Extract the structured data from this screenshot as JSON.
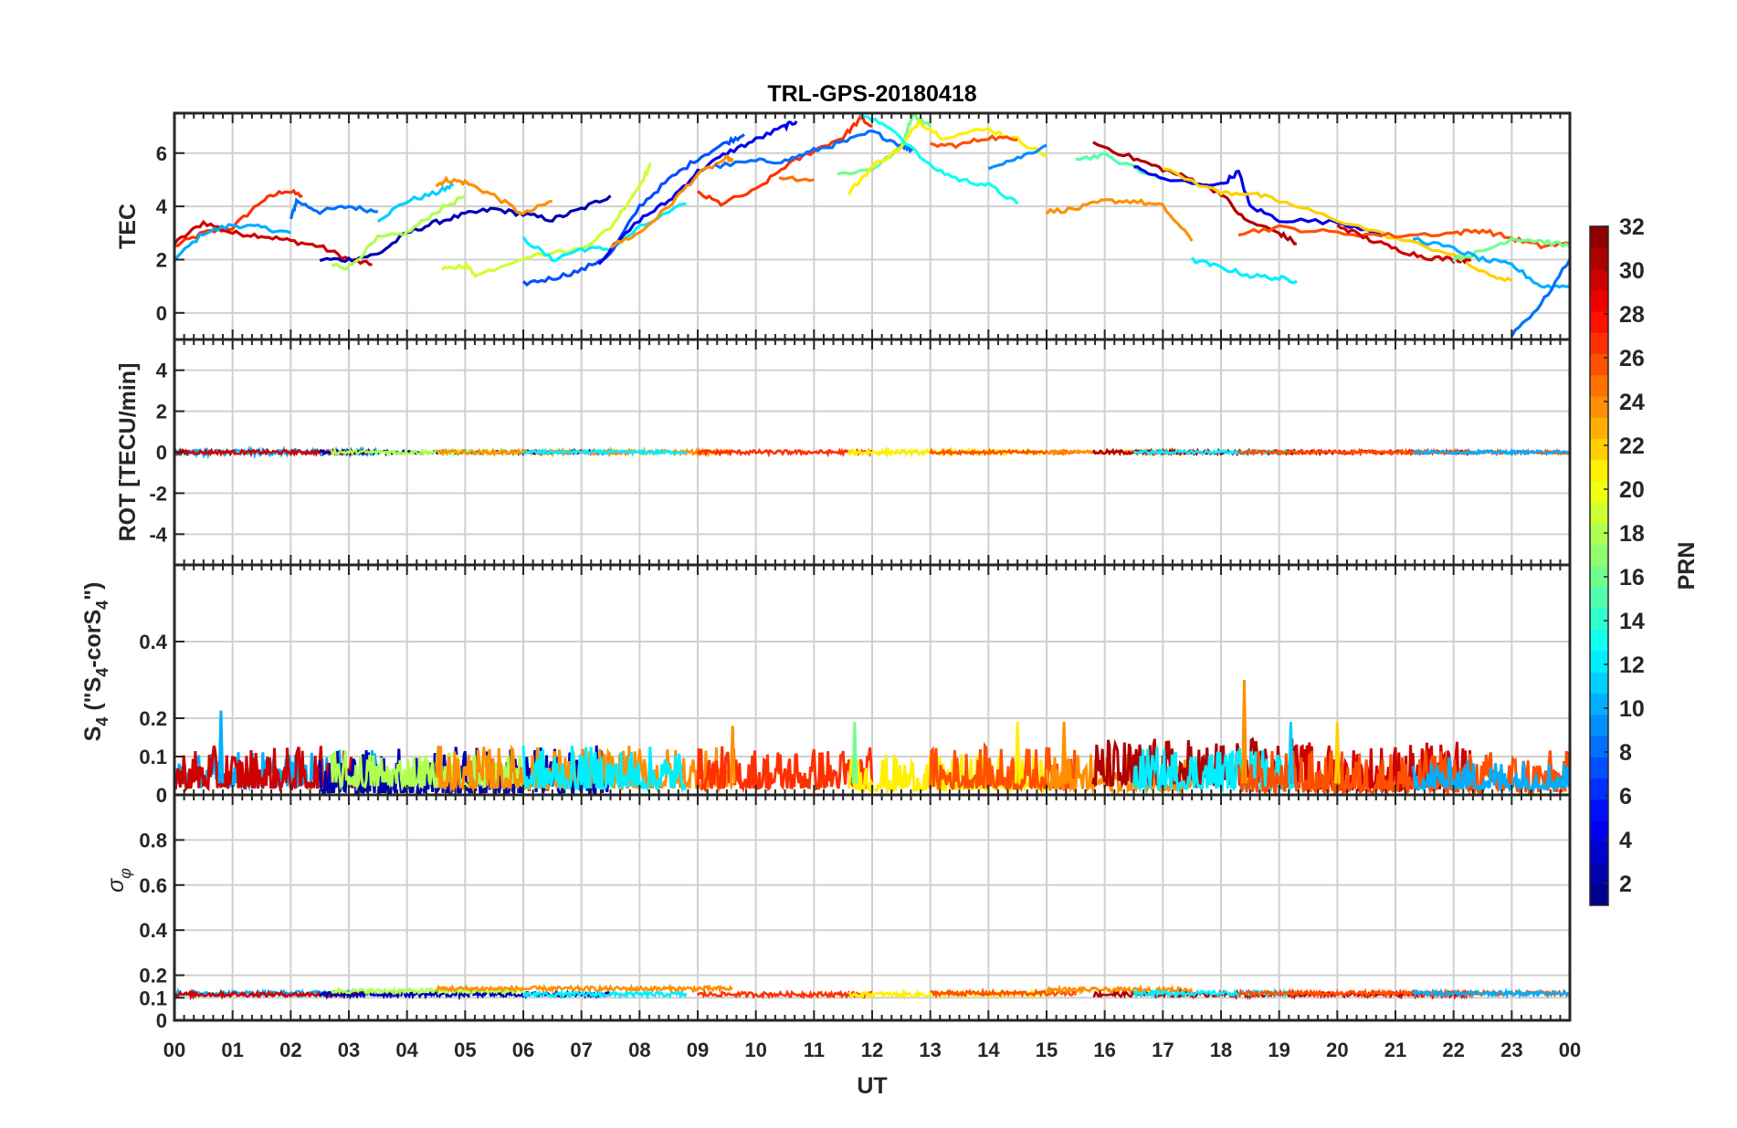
{
  "chart_data": {
    "type": "line",
    "title": "TRL-GPS-20180418",
    "xlabel": "UT",
    "xlim": [
      0,
      24
    ],
    "x_tick_labels": [
      "00",
      "01",
      "02",
      "03",
      "04",
      "05",
      "06",
      "07",
      "08",
      "09",
      "10",
      "11",
      "12",
      "13",
      "14",
      "15",
      "16",
      "17",
      "18",
      "19",
      "20",
      "21",
      "22",
      "23",
      "00"
    ],
    "grid": true,
    "colorbar": {
      "label": "PRN",
      "range": [
        1,
        32
      ],
      "levels": 32,
      "colormap": "jet",
      "tick_labels": [
        "2",
        "4",
        "6",
        "8",
        "10",
        "12",
        "14",
        "16",
        "18",
        "20",
        "22",
        "24",
        "26",
        "28",
        "30",
        "32"
      ],
      "placement": "right"
    },
    "panels": [
      {
        "id": "tec",
        "ylabel": "TEC",
        "ylim": [
          -1.0,
          7.5
        ],
        "yticks": [
          0,
          2,
          4,
          6
        ],
        "ytick_labels": [
          "0",
          "2",
          "4",
          "6"
        ]
      },
      {
        "id": "rot",
        "ylabel": "ROT [TECU/min]",
        "ylim": [
          -5.5,
          5.5
        ],
        "yticks": [
          -4,
          -2,
          0,
          2,
          4
        ],
        "ytick_labels": [
          "-4",
          "-2",
          "0",
          "2",
          "4"
        ]
      },
      {
        "id": "s4",
        "ylabel_parts": [
          "S",
          "4",
          " (\"S",
          "4",
          "-corS",
          "4",
          "\")"
        ],
        "ylim": [
          0,
          0.6
        ],
        "yticks": [
          0,
          0.1,
          0.2,
          0.4
        ],
        "ytick_labels": [
          "0",
          "0.1",
          "0.2",
          "0.4"
        ]
      },
      {
        "id": "sigma",
        "ylabel_parts": [
          "σ",
          "φ"
        ],
        "ylim": [
          0,
          1.0
        ],
        "yticks": [
          0,
          0.1,
          0.2,
          0.4,
          0.6,
          0.8
        ],
        "ytick_labels": [
          "0",
          "0.1",
          "0.2",
          "0.4",
          "0.6",
          "0.8"
        ]
      }
    ],
    "tec_series": [
      {
        "prn": 27,
        "points": [
          [
            0,
            2.5
          ],
          [
            0.5,
            3.0
          ],
          [
            1.0,
            3.2
          ],
          [
            1.5,
            4.2
          ],
          [
            1.9,
            4.6
          ],
          [
            2.2,
            4.4
          ]
        ]
      },
      {
        "prn": 30,
        "points": [
          [
            0,
            2.6
          ],
          [
            0.5,
            3.4
          ],
          [
            1,
            3.0
          ],
          [
            1.5,
            2.9
          ],
          [
            2,
            2.7
          ],
          [
            2.5,
            2.5
          ],
          [
            3,
            2.0
          ],
          [
            3.4,
            1.8
          ]
        ]
      },
      {
        "prn": 10,
        "points": [
          [
            0,
            2.0
          ],
          [
            0.5,
            3.0
          ],
          [
            1.0,
            3.3
          ],
          [
            1.5,
            3.2
          ],
          [
            2,
            3.0
          ]
        ]
      },
      {
        "prn": 8,
        "points": [
          [
            2.0,
            3.5
          ],
          [
            2.1,
            4.2
          ],
          [
            2.5,
            3.8
          ],
          [
            3.0,
            4.0
          ],
          [
            3.5,
            3.8
          ]
        ]
      },
      {
        "prn": 11,
        "points": [
          [
            3.5,
            3.5
          ],
          [
            4.0,
            4.2
          ],
          [
            4.5,
            4.5
          ],
          [
            4.8,
            4.8
          ]
        ]
      },
      {
        "prn": 2,
        "points": [
          [
            2.5,
            2.0
          ],
          [
            3,
            2.0
          ],
          [
            3.5,
            2.2
          ],
          [
            4,
            3.0
          ],
          [
            4.5,
            3.4
          ],
          [
            5,
            3.7
          ],
          [
            5.5,
            3.9
          ],
          [
            6,
            3.7
          ],
          [
            6.5,
            3.5
          ],
          [
            7,
            3.9
          ],
          [
            7.5,
            4.4
          ]
        ]
      },
      {
        "prn": 24,
        "points": [
          [
            4.5,
            4.8
          ],
          [
            4.7,
            5.0
          ],
          [
            5,
            4.9
          ],
          [
            5.5,
            4.4
          ],
          [
            6,
            3.7
          ],
          [
            6.5,
            4.2
          ]
        ]
      },
      {
        "prn": 18,
        "points": [
          [
            2.7,
            1.8
          ],
          [
            3,
            1.7
          ],
          [
            3.5,
            2.8
          ],
          [
            4,
            3.0
          ],
          [
            4.5,
            3.8
          ],
          [
            5,
            4.4
          ]
        ]
      },
      {
        "prn": 19,
        "points": [
          [
            4.6,
            1.6
          ],
          [
            5,
            1.8
          ],
          [
            5.2,
            1.4
          ],
          [
            6,
            2.1
          ],
          [
            7,
            2.4
          ],
          [
            7.5,
            3.2
          ],
          [
            8,
            4.8
          ],
          [
            8.2,
            5.6
          ]
        ]
      },
      {
        "prn": 12,
        "points": [
          [
            6,
            2.8
          ],
          [
            6.5,
            2.0
          ],
          [
            7,
            2.4
          ],
          [
            7.5,
            2.4
          ],
          [
            8,
            3.2
          ],
          [
            8.8,
            4.1
          ]
        ]
      },
      {
        "prn": 7,
        "points": [
          [
            6.0,
            1.1
          ],
          [
            6.5,
            1.3
          ],
          [
            7,
            1.6
          ],
          [
            7.5,
            2.2
          ],
          [
            8,
            4.0
          ],
          [
            8.5,
            5.0
          ],
          [
            9,
            5.8
          ],
          [
            9.5,
            6.4
          ],
          [
            9.8,
            6.7
          ]
        ]
      },
      {
        "prn": 4,
        "points": [
          [
            7.3,
            1.9
          ],
          [
            8,
            3.5
          ],
          [
            8.5,
            4.2
          ],
          [
            9,
            5.3
          ],
          [
            9.5,
            6.0
          ],
          [
            10,
            6.5
          ],
          [
            10.5,
            7.0
          ],
          [
            10.7,
            7.2
          ]
        ]
      },
      {
        "prn": 24,
        "points": [
          [
            7.5,
            2.5
          ],
          [
            8,
            3.0
          ],
          [
            8.5,
            4.0
          ],
          [
            9,
            5.2
          ],
          [
            9.5,
            5.8
          ],
          [
            9.6,
            5.7
          ]
        ]
      },
      {
        "prn": 27,
        "points": [
          [
            9.0,
            4.5
          ],
          [
            9.4,
            4.1
          ],
          [
            10,
            4.6
          ],
          [
            10.5,
            5.5
          ],
          [
            11,
            6.1
          ],
          [
            11.5,
            6.6
          ],
          [
            11.8,
            7.3
          ],
          [
            12,
            7.0
          ]
        ]
      },
      {
        "prn": 8,
        "points": [
          [
            9.3,
            5.5
          ],
          [
            10,
            5.7
          ],
          [
            10.5,
            5.7
          ],
          [
            11,
            6.1
          ],
          [
            11.5,
            6.4
          ],
          [
            12,
            6.8
          ],
          [
            12.5,
            6.3
          ],
          [
            12.7,
            6.1
          ]
        ]
      },
      {
        "prn": 25,
        "points": [
          [
            10.4,
            5.1
          ],
          [
            11,
            5.0
          ]
        ]
      },
      {
        "prn": 16,
        "points": [
          [
            11.4,
            5.2
          ],
          [
            12,
            5.4
          ],
          [
            12.5,
            6.2
          ],
          [
            12.7,
            7.5
          ],
          [
            13,
            7.0
          ]
        ]
      },
      {
        "prn": 21,
        "points": [
          [
            11.6,
            4.5
          ],
          [
            12,
            5.5
          ],
          [
            12.5,
            6.2
          ],
          [
            12.8,
            7.2
          ],
          [
            13.2,
            6.6
          ],
          [
            14,
            6.9
          ],
          [
            14.5,
            6.5
          ],
          [
            15,
            5.9
          ]
        ]
      },
      {
        "prn": 13,
        "points": [
          [
            11.8,
            7.4
          ],
          [
            12.3,
            7.0
          ],
          [
            13,
            5.5
          ],
          [
            13.5,
            5.0
          ],
          [
            14,
            4.8
          ],
          [
            14.5,
            4.1
          ]
        ]
      },
      {
        "prn": 26,
        "points": [
          [
            13,
            6.3
          ],
          [
            13.5,
            6.3
          ],
          [
            14,
            6.6
          ],
          [
            14.5,
            6.5
          ]
        ]
      },
      {
        "prn": 9,
        "points": [
          [
            14,
            5.5
          ],
          [
            14.5,
            5.8
          ],
          [
            15,
            6.3
          ]
        ]
      },
      {
        "prn": 24,
        "points": [
          [
            15,
            3.8
          ],
          [
            15.5,
            3.9
          ],
          [
            16,
            4.2
          ],
          [
            16.5,
            4.2
          ],
          [
            17,
            4.0
          ],
          [
            17.5,
            2.7
          ]
        ]
      },
      {
        "prn": 15,
        "points": [
          [
            15.5,
            5.8
          ],
          [
            16,
            5.9
          ],
          [
            17,
            5.0
          ]
        ]
      },
      {
        "prn": 31,
        "points": [
          [
            15.8,
            6.4
          ],
          [
            16.5,
            5.8
          ],
          [
            17,
            5.4
          ],
          [
            17.5,
            5.0
          ],
          [
            18,
            4.5
          ],
          [
            18.4,
            3.5
          ],
          [
            19,
            3.0
          ],
          [
            19.3,
            2.6
          ]
        ]
      },
      {
        "prn": 4,
        "points": [
          [
            16.5,
            5.5
          ],
          [
            17,
            5.0
          ],
          [
            18,
            4.8
          ],
          [
            18.3,
            5.3
          ],
          [
            18.5,
            4.0
          ],
          [
            19,
            3.5
          ],
          [
            20,
            3.4
          ],
          [
            20.8,
            3.0
          ]
        ]
      },
      {
        "prn": 22,
        "points": [
          [
            17,
            5.4
          ],
          [
            18,
            4.5
          ],
          [
            18.5,
            4.5
          ],
          [
            19,
            4.2
          ],
          [
            20,
            3.5
          ],
          [
            21,
            2.8
          ],
          [
            22,
            2.2
          ],
          [
            22.5,
            1.5
          ],
          [
            23,
            1.2
          ]
        ]
      },
      {
        "prn": 12,
        "points": [
          [
            17.5,
            2.0
          ],
          [
            18,
            1.7
          ],
          [
            18.5,
            1.4
          ],
          [
            19,
            1.3
          ],
          [
            19.3,
            1.2
          ]
        ]
      },
      {
        "prn": 26,
        "points": [
          [
            18.3,
            3.0
          ],
          [
            19,
            3.2
          ],
          [
            20,
            3.0
          ],
          [
            21,
            2.9
          ],
          [
            22,
            3.0
          ],
          [
            22.5,
            3.1
          ],
          [
            23,
            2.8
          ],
          [
            23.5,
            2.5
          ],
          [
            24,
            2.6
          ]
        ]
      },
      {
        "prn": 30,
        "points": [
          [
            20,
            3.3
          ],
          [
            20.5,
            2.8
          ],
          [
            21,
            2.4
          ],
          [
            21.5,
            2.1
          ],
          [
            22,
            2.0
          ],
          [
            22.3,
            2.0
          ]
        ]
      },
      {
        "prn": 16,
        "points": [
          [
            22,
            2.0
          ],
          [
            22.5,
            2.3
          ],
          [
            23,
            2.8
          ],
          [
            23.5,
            2.7
          ],
          [
            24,
            2.5
          ]
        ]
      },
      {
        "prn": 10,
        "points": [
          [
            21.3,
            2.8
          ],
          [
            22,
            2.4
          ],
          [
            22.5,
            2.0
          ],
          [
            23,
            1.8
          ],
          [
            23.5,
            1.0
          ],
          [
            24,
            1.0
          ]
        ]
      },
      {
        "prn": 8,
        "points": [
          [
            23,
            -0.8
          ],
          [
            23.5,
            0.3
          ],
          [
            24,
            2.0
          ]
        ]
      }
    ],
    "noise_tracks": [
      {
        "prn": 10,
        "start": 0,
        "end": 3.5,
        "s4_mean": 0.05,
        "s4_amp": 0.06,
        "sigma_mean": 0.12,
        "rot_amp": 0.15
      },
      {
        "prn": 30,
        "start": 0,
        "end": 3.4,
        "s4_mean": 0.05,
        "s4_amp": 0.07,
        "sigma_mean": 0.115,
        "rot_amp": 0.1
      },
      {
        "prn": 2,
        "start": 2.5,
        "end": 7.5,
        "s4_mean": 0.04,
        "s4_amp": 0.08,
        "sigma_mean": 0.115,
        "rot_amp": 0.08
      },
      {
        "prn": 18,
        "start": 2.7,
        "end": 6,
        "s4_mean": 0.05,
        "s4_amp": 0.06,
        "sigma_mean": 0.13,
        "rot_amp": 0.1
      },
      {
        "prn": 24,
        "start": 4.5,
        "end": 9.6,
        "s4_mean": 0.05,
        "s4_amp": 0.07,
        "sigma_mean": 0.14,
        "rot_amp": 0.1
      },
      {
        "prn": 12,
        "start": 6,
        "end": 8.8,
        "s4_mean": 0.05,
        "s4_amp": 0.07,
        "sigma_mean": 0.115,
        "rot_amp": 0.08
      },
      {
        "prn": 27,
        "start": 9,
        "end": 12,
        "s4_mean": 0.05,
        "s4_amp": 0.07,
        "sigma_mean": 0.115,
        "rot_amp": 0.1
      },
      {
        "prn": 21,
        "start": 11.6,
        "end": 15,
        "s4_mean": 0.04,
        "s4_amp": 0.06,
        "sigma_mean": 0.115,
        "rot_amp": 0.12
      },
      {
        "prn": 26,
        "start": 13,
        "end": 15.5,
        "s4_mean": 0.05,
        "s4_amp": 0.07,
        "sigma_mean": 0.12,
        "rot_amp": 0.08
      },
      {
        "prn": 24,
        "start": 15,
        "end": 17.5,
        "s4_mean": 0.04,
        "s4_amp": 0.06,
        "sigma_mean": 0.135,
        "rot_amp": 0.08
      },
      {
        "prn": 31,
        "start": 15.8,
        "end": 19.3,
        "s4_mean": 0.06,
        "s4_amp": 0.08,
        "sigma_mean": 0.115,
        "rot_amp": 0.1
      },
      {
        "prn": 12,
        "start": 16.5,
        "end": 19.3,
        "s4_mean": 0.05,
        "s4_amp": 0.07,
        "sigma_mean": 0.12,
        "rot_amp": 0.08
      },
      {
        "prn": 30,
        "start": 19.3,
        "end": 22.3,
        "s4_mean": 0.05,
        "s4_amp": 0.08,
        "sigma_mean": 0.115,
        "rot_amp": 0.08
      },
      {
        "prn": 26,
        "start": 18.3,
        "end": 24,
        "s4_mean": 0.04,
        "s4_amp": 0.07,
        "sigma_mean": 0.12,
        "rot_amp": 0.08
      },
      {
        "prn": 10,
        "start": 21.3,
        "end": 24,
        "s4_mean": 0.04,
        "s4_amp": 0.05,
        "sigma_mean": 0.12,
        "rot_amp": 0.08
      }
    ],
    "s4_spikes": [
      {
        "prn": 10,
        "x": 0.8,
        "s4": 0.22
      },
      {
        "prn": 24,
        "x": 9.6,
        "s4": 0.18
      },
      {
        "prn": 16,
        "x": 11.7,
        "s4": 0.19
      },
      {
        "prn": 21,
        "x": 14.5,
        "s4": 0.19
      },
      {
        "prn": 24,
        "x": 15.3,
        "s4": 0.19
      },
      {
        "prn": 24,
        "x": 18.4,
        "s4": 0.3
      },
      {
        "prn": 11,
        "x": 19.2,
        "s4": 0.19
      },
      {
        "prn": 22,
        "x": 20.0,
        "s4": 0.19
      }
    ]
  }
}
